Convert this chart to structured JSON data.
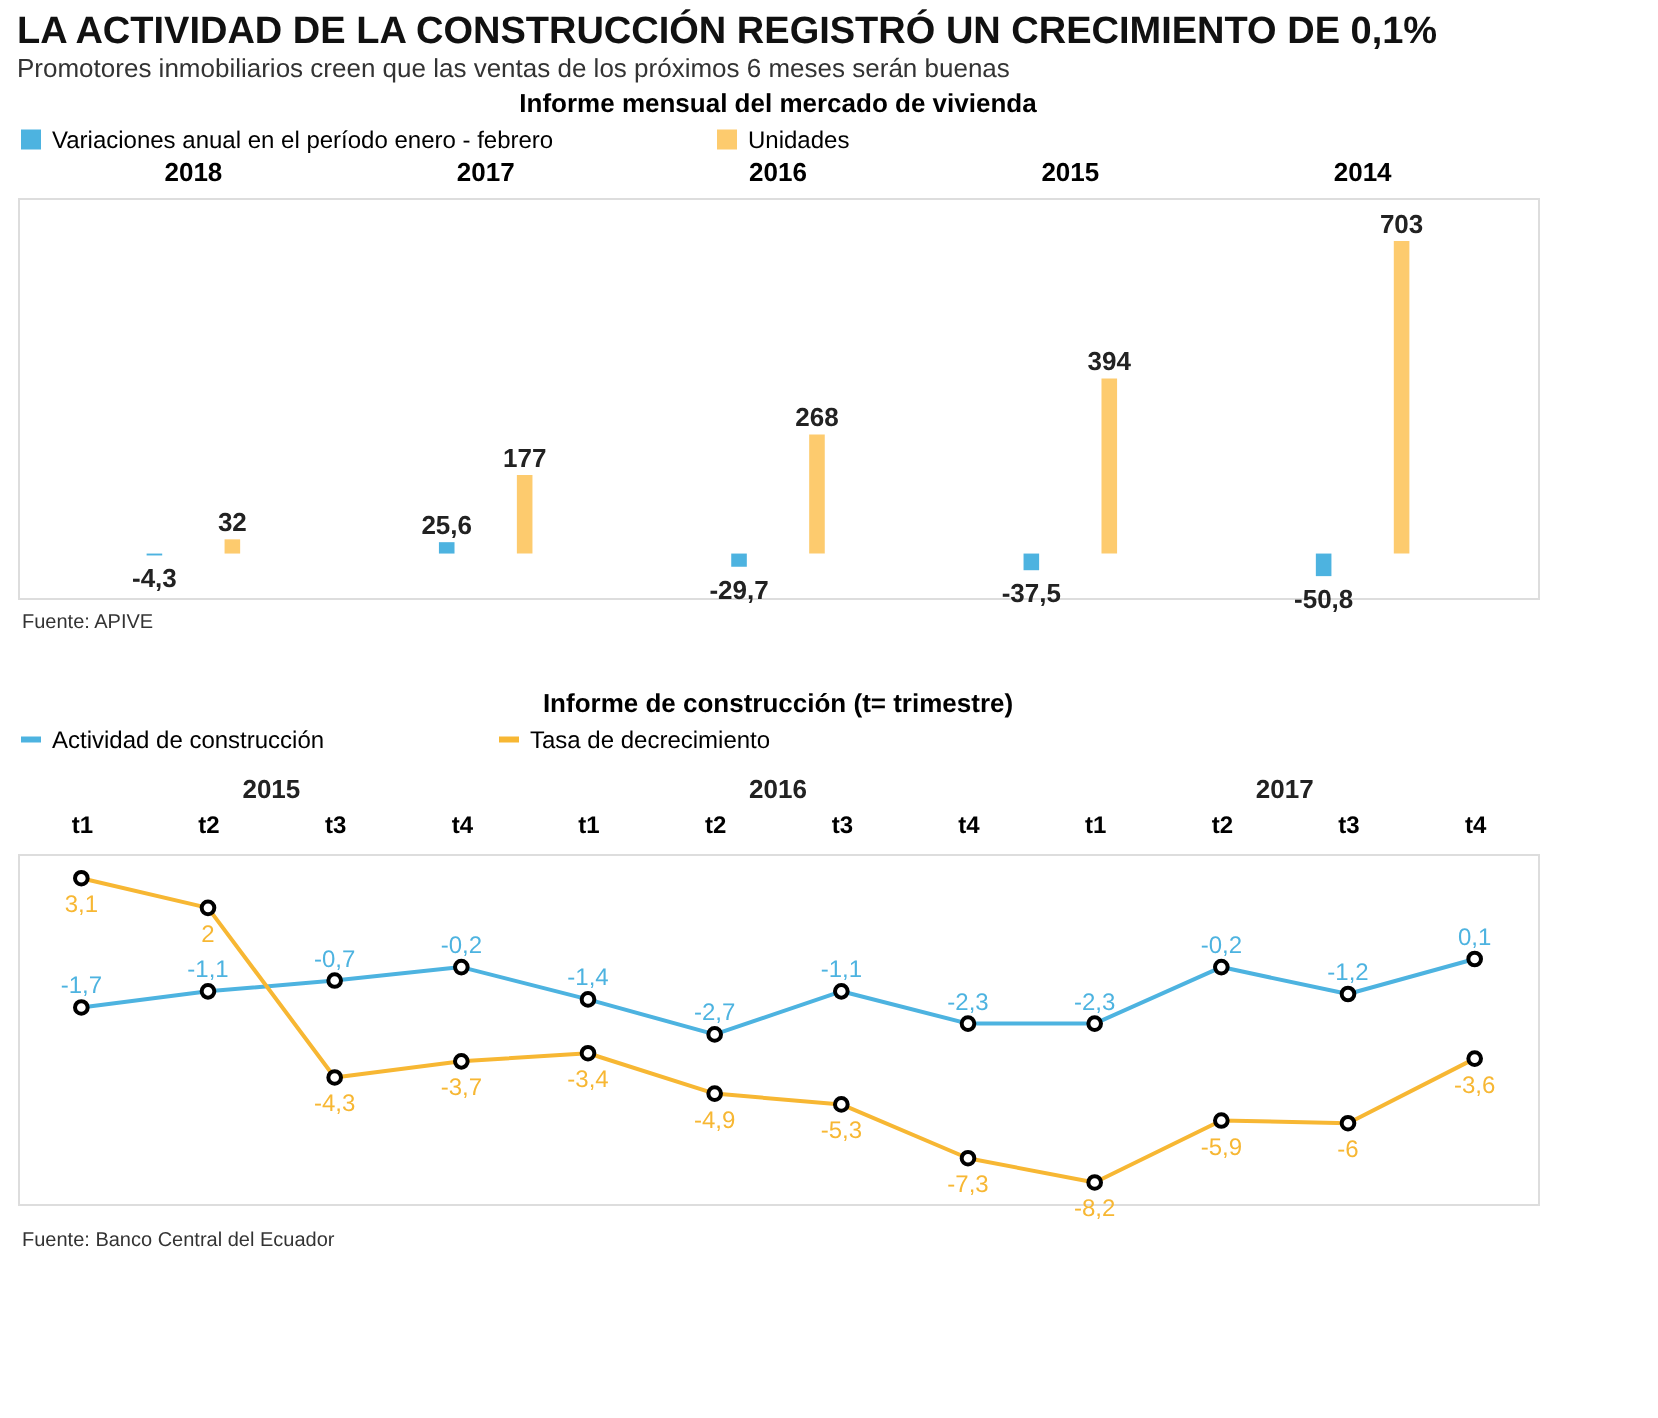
{
  "chart_data": [
    {
      "type": "bar",
      "title": "LA ACTIVIDAD DE LA CONSTRUCCIÓN REGISTRÓ UN CRECIMIENTO DE 0,1%",
      "subtitle": "Promotores inmobiliarios creen que las ventas de los próximos 6 meses serán buenas",
      "categories": [
        "2018",
        "2017",
        "2016",
        "2015",
        "2014"
      ],
      "series": [
        {
          "name": "Variaciones anual en el período enero - febrero",
          "color": "#4db3e0",
          "values": [
            -4.3,
            25.6,
            -29.7,
            -37.5,
            -50.8
          ],
          "value_labels": [
            "-4,3",
            "25,6",
            "-29,7",
            "-37,5",
            "-50,8"
          ]
        },
        {
          "name": "Unidades",
          "color": "#fdcb6e",
          "values": [
            32,
            177,
            268,
            394,
            703
          ],
          "value_labels": [
            "32",
            "177",
            "268",
            "394",
            "703"
          ]
        }
      ],
      "legend": "top",
      "annotations": [
        "Informe mensual del mercado de vivienda",
        "Fuente: APIVE"
      ]
    },
    {
      "type": "line",
      "title": "Informe de construcción (t= trimestre)",
      "categories": [
        "t1",
        "t2",
        "t3",
        "t4",
        "t1",
        "t2",
        "t3",
        "t4",
        "t1",
        "t2",
        "t3",
        "t4"
      ],
      "series": [
        {
          "name": "Actividad de construcción",
          "color": "#4db3e0",
          "values": [
            -1.7,
            -1.1,
            -0.7,
            -0.2,
            -1.4,
            -2.7,
            -1.1,
            -2.3,
            -2.3,
            -0.2,
            -1.2,
            0.1
          ],
          "value_labels": [
            "-1,7",
            "-1,1",
            "-0,7",
            "-0,2",
            "-1,4",
            "-2,7",
            "-1,1",
            "-2,3",
            "-2,3",
            "-0,2",
            "-1,2",
            "0,1"
          ]
        },
        {
          "name": "Tasa de decrecimiento",
          "color": "#f7b733",
          "values": [
            3.1,
            2,
            -4.3,
            -3.7,
            -3.4,
            -4.9,
            -5.3,
            -7.3,
            -8.2,
            -5.9,
            -6,
            -3.6
          ],
          "value_labels": [
            "3,1",
            "2",
            "-4,3",
            "-3,7",
            "-3,4",
            "-4,9",
            "-5,3",
            "-7,3",
            "-8,2",
            "-5,9",
            "-6",
            "-3,6"
          ]
        }
      ],
      "marker": "circle",
      "legend": "top",
      "annotations": [
        "2015",
        "2016",
        "2017",
        "Fuente: Banco Central del Ecuador"
      ]
    }
  ]
}
